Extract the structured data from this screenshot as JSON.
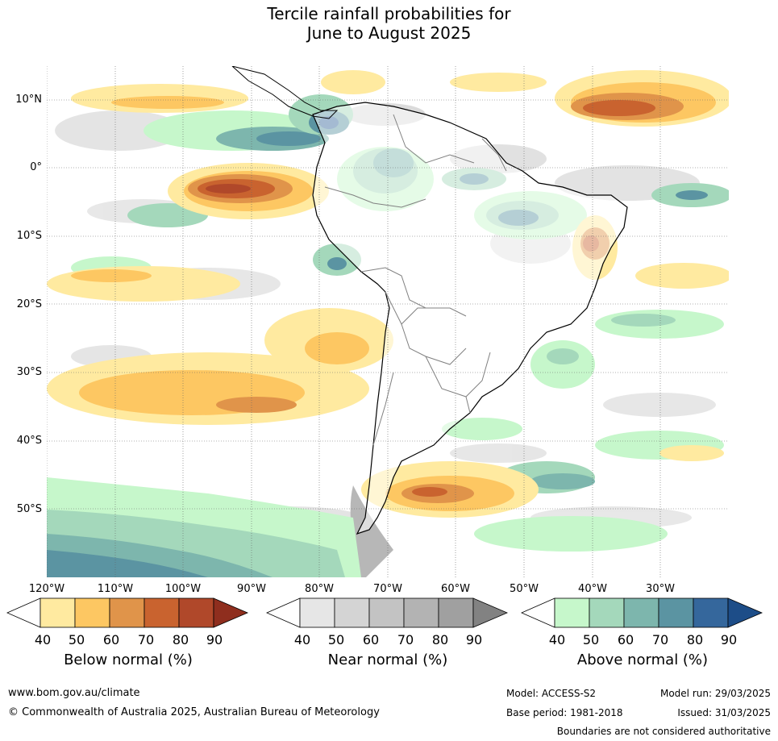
{
  "title": {
    "line1": "Tercile rainfall probabilities for",
    "line2": "June to August 2025"
  },
  "map": {
    "lat_labels": [
      "10°N",
      "0°",
      "10°S",
      "20°S",
      "30°S",
      "40°S",
      "50°S"
    ],
    "lon_labels": [
      "120°W",
      "110°W",
      "100°W",
      "90°W",
      "80°W",
      "70°W",
      "60°W",
      "50°W",
      "40°W",
      "30°W"
    ]
  },
  "legend": {
    "below": {
      "title": "Below normal (%)",
      "ticks": [
        "40",
        "50",
        "60",
        "70",
        "80",
        "90"
      ],
      "colors": [
        "#ffffff",
        "#ffeaa0",
        "#fdc762",
        "#e0944a",
        "#c9632f",
        "#b0482a",
        "#8f2e1e"
      ]
    },
    "near": {
      "title": "Near normal (%)",
      "ticks": [
        "40",
        "50",
        "60",
        "70",
        "80",
        "90"
      ],
      "colors": [
        "#ffffff",
        "#e6e6e6",
        "#d4d4d4",
        "#c3c3c3",
        "#b3b3b3",
        "#a0a0a0",
        "#828282"
      ]
    },
    "above": {
      "title": "Above normal (%)",
      "ticks": [
        "40",
        "50",
        "60",
        "70",
        "80",
        "90"
      ],
      "colors": [
        "#ffffff",
        "#c6f7cb",
        "#a4d8bb",
        "#7db6ad",
        "#5b94a2",
        "#35679c",
        "#1d4d88"
      ]
    }
  },
  "footer": {
    "website": "www.bom.gov.au/climate",
    "copyright": "© Commonwealth of Australia 2025, Australian Bureau of Meteorology",
    "model": "Model: ACCESS-S2",
    "model_run": "Model run: 29/03/2025",
    "base_period": "Base period: 1981-2018",
    "issued": "Issued: 31/03/2025",
    "disclaimer": "Boundaries are not considered authoritative"
  }
}
